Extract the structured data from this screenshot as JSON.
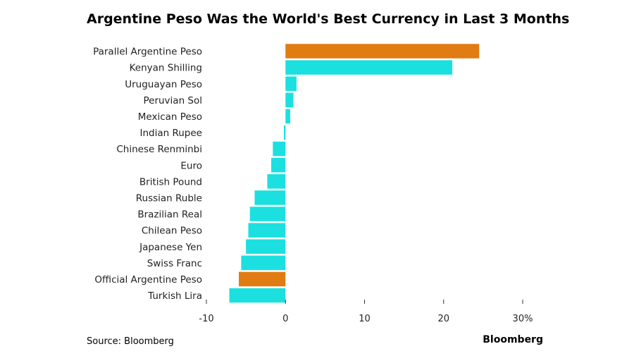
{
  "chart_data": {
    "type": "bar",
    "orientation": "horizontal",
    "title": "Argentine Peso Was the World's Best Currency in Last 3 Months",
    "categories": [
      "Parallel Argentine Peso",
      "Kenyan Shilling",
      "Uruguayan Peso",
      "Peruvian Sol",
      "Mexican Peso",
      "Indian Rupee",
      "Chinese Renminbi",
      "Euro",
      "British Pound",
      "Russian Ruble",
      "Brazilian Real",
      "Chilean Peso",
      "Japanese Yen",
      "Swiss Franc",
      "Official Argentine Peso",
      "Turkish Lira"
    ],
    "values": [
      24.5,
      21.1,
      1.4,
      1.0,
      0.6,
      -0.2,
      -1.6,
      -1.8,
      -2.3,
      -3.9,
      -4.5,
      -4.7,
      -5.0,
      -5.6,
      -5.9,
      -7.1
    ],
    "highlight": [
      true,
      false,
      false,
      false,
      false,
      false,
      false,
      false,
      false,
      false,
      false,
      false,
      false,
      false,
      true,
      false
    ],
    "xlim": [
      -10,
      30
    ],
    "xticks": [
      -10,
      0,
      10,
      20,
      30
    ],
    "xtick_labels": [
      "-10",
      "0",
      "10",
      "20",
      "30%"
    ],
    "colors": {
      "bar": "#1ce0e0",
      "highlight": "#e07c12"
    },
    "grid": false
  },
  "source": "Source: Bloomberg",
  "brand": "Bloomberg"
}
